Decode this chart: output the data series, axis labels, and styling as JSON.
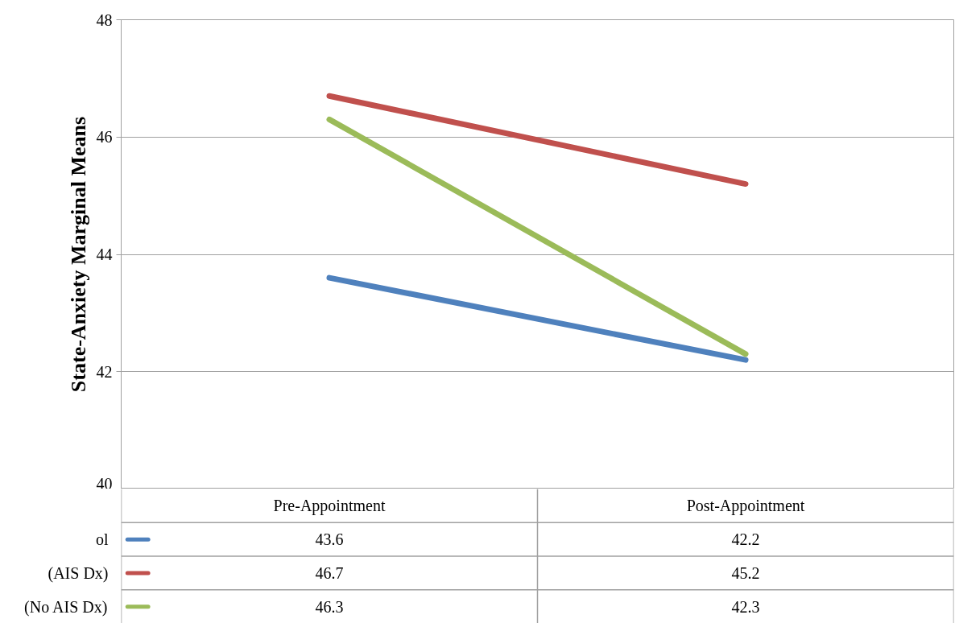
{
  "chart_data": {
    "type": "line",
    "ylabel": "State-Anxiety Marginal Means",
    "categories": [
      "Pre-Appointment",
      "Post-Appointment"
    ],
    "series": [
      {
        "name": "ol",
        "color": "#4f81bd",
        "values": [
          43.6,
          42.2
        ]
      },
      {
        "name": "(AIS Dx)",
        "color": "#c0504d",
        "values": [
          46.7,
          45.2
        ]
      },
      {
        "name": "(No AIS Dx)",
        "color": "#9bbb59",
        "values": [
          46.3,
          42.3
        ]
      }
    ],
    "ylim": [
      40,
      48
    ],
    "yticks": [
      40,
      42,
      44,
      46,
      48
    ],
    "grid": "y",
    "legend": "bottom left",
    "data_labels": true
  }
}
